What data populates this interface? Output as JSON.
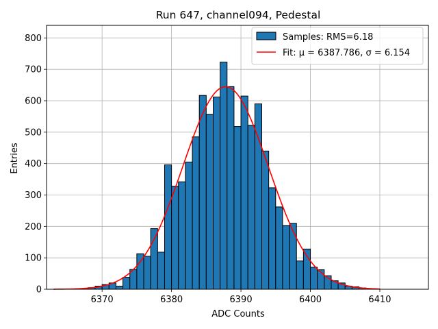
{
  "chart_data": {
    "type": "bar",
    "title": "Run 647, channel094, Pedestal",
    "xlabel": "ADC Counts",
    "ylabel": "Entries",
    "xlim": [
      6362,
      6417
    ],
    "ylim": [
      0,
      840
    ],
    "xticks": [
      6370,
      6380,
      6390,
      6400,
      6410
    ],
    "yticks": [
      0,
      100,
      200,
      300,
      400,
      500,
      600,
      700,
      800
    ],
    "grid": true,
    "legend_position": "top-right",
    "bin_width": 1,
    "bar_color": "#1f77b4",
    "bar_edge_color": "#000000",
    "fit_color": "#ff0000",
    "series": [
      {
        "name": "Samples: RMS=6.18",
        "kind": "histogram",
        "bins": [
          {
            "x": 6366,
            "value": 1
          },
          {
            "x": 6367,
            "value": 2
          },
          {
            "x": 6368,
            "value": 5
          },
          {
            "x": 6369,
            "value": 10
          },
          {
            "x": 6370,
            "value": 15
          },
          {
            "x": 6371,
            "value": 20
          },
          {
            "x": 6372,
            "value": 10
          },
          {
            "x": 6373,
            "value": 38
          },
          {
            "x": 6374,
            "value": 63
          },
          {
            "x": 6375,
            "value": 113
          },
          {
            "x": 6376,
            "value": 105
          },
          {
            "x": 6377,
            "value": 193
          },
          {
            "x": 6378,
            "value": 118
          },
          {
            "x": 6379,
            "value": 396
          },
          {
            "x": 6380,
            "value": 328
          },
          {
            "x": 6381,
            "value": 342
          },
          {
            "x": 6382,
            "value": 405
          },
          {
            "x": 6383,
            "value": 485
          },
          {
            "x": 6384,
            "value": 617
          },
          {
            "x": 6385,
            "value": 557
          },
          {
            "x": 6386,
            "value": 612
          },
          {
            "x": 6387,
            "value": 723
          },
          {
            "x": 6388,
            "value": 645
          },
          {
            "x": 6389,
            "value": 518
          },
          {
            "x": 6390,
            "value": 615
          },
          {
            "x": 6391,
            "value": 522
          },
          {
            "x": 6392,
            "value": 590
          },
          {
            "x": 6393,
            "value": 440
          },
          {
            "x": 6394,
            "value": 323
          },
          {
            "x": 6395,
            "value": 262
          },
          {
            "x": 6396,
            "value": 203
          },
          {
            "x": 6397,
            "value": 210
          },
          {
            "x": 6398,
            "value": 90
          },
          {
            "x": 6399,
            "value": 128
          },
          {
            "x": 6400,
            "value": 70
          },
          {
            "x": 6401,
            "value": 62
          },
          {
            "x": 6402,
            "value": 43
          },
          {
            "x": 6403,
            "value": 27
          },
          {
            "x": 6404,
            "value": 20
          },
          {
            "x": 6405,
            "value": 10
          },
          {
            "x": 6406,
            "value": 8
          },
          {
            "x": 6407,
            "value": 4
          },
          {
            "x": 6408,
            "value": 2
          },
          {
            "x": 6409,
            "value": 1
          }
        ]
      },
      {
        "name": "Fit: μ = 6387.786, σ = 6.154",
        "kind": "gaussian",
        "mu": 6387.786,
        "sigma": 6.154,
        "amplitude": 645,
        "x_range": [
          6363,
          6410
        ]
      }
    ]
  }
}
